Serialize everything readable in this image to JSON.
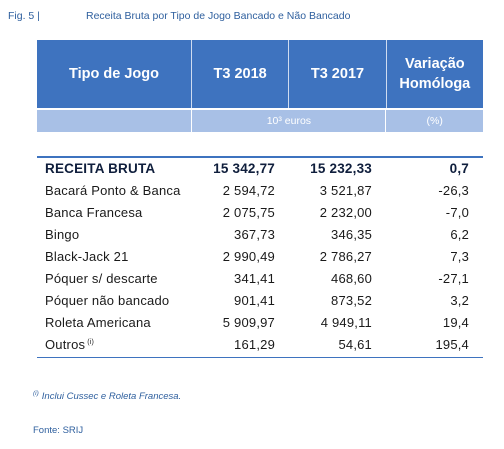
{
  "caption": {
    "figure_label": "Fig. 5 |",
    "title": "Receita Bruta por Tipo de Jogo Bancado e Não Bancado"
  },
  "table": {
    "headers": {
      "type": "Tipo de Jogo",
      "col1": "T3 2018",
      "col2": "T3 2017",
      "col3_line1": "Variação",
      "col3_line2": "Homóloga"
    },
    "units": {
      "values": "10³ euros",
      "change": "(%)"
    },
    "total": {
      "label": "RECEITA BRUTA",
      "t3_2018": "15 342,77",
      "t3_2017": "15 232,33",
      "change": "0,7"
    },
    "rows": [
      {
        "label": "Bacará Ponto & Banca",
        "t3_2018": "2 594,72",
        "t3_2017": "3 521,87",
        "change": "-26,3"
      },
      {
        "label": "Banca Francesa",
        "t3_2018": "2 075,75",
        "t3_2017": "2 232,00",
        "change": "-7,0"
      },
      {
        "label": "Bingo",
        "t3_2018": "367,73",
        "t3_2017": "346,35",
        "change": "6,2"
      },
      {
        "label": "Black-Jack 21",
        "t3_2018": "2 990,49",
        "t3_2017": "2 786,27",
        "change": "7,3"
      },
      {
        "label": "Póquer s/ descarte",
        "t3_2018": "341,41",
        "t3_2017": "468,60",
        "change": "-27,1"
      },
      {
        "label": "Póquer não bancado",
        "t3_2018": "901,41",
        "t3_2017": "873,52",
        "change": "3,2"
      },
      {
        "label": "Roleta Americana",
        "t3_2018": "5 909,97",
        "t3_2017": "4 949,11",
        "change": "19,4"
      },
      {
        "label": "Outros",
        "label_note": "(i)",
        "t3_2018": "161,29",
        "t3_2017": "54,61",
        "change": "195,4"
      }
    ]
  },
  "footnote": {
    "mark": "(i)",
    "text": "Inclui Cussec e Roleta Francesa."
  },
  "source": "Fonte: SRIJ",
  "colors": {
    "header_bg": "#3e73bf",
    "subheader_bg": "#a8c0e6",
    "caption_text": "#2e5f9e"
  }
}
